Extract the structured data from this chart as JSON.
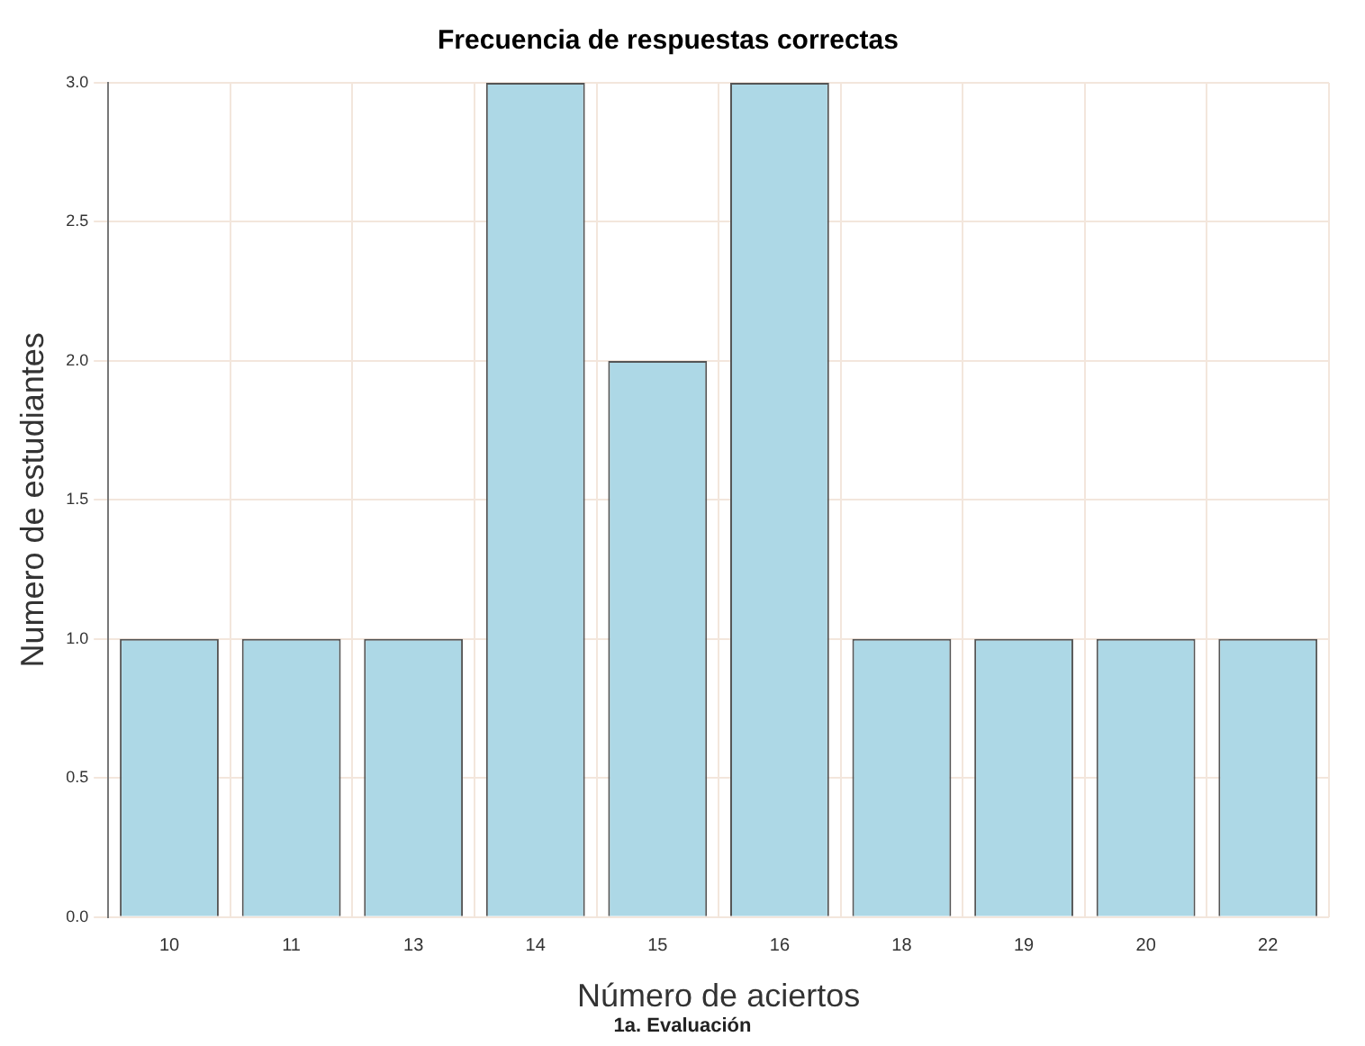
{
  "chart_data": {
    "type": "bar",
    "title": "Frecuencia de respuestas correctas",
    "xlabel": "Número de aciertos",
    "ylabel": "Numero de estudiantes",
    "categories": [
      "10",
      "11",
      "13",
      "14",
      "15",
      "16",
      "18",
      "19",
      "20",
      "22"
    ],
    "values": [
      1,
      1,
      1,
      3,
      2,
      3,
      1,
      1,
      1,
      1
    ],
    "color": "#add8e6",
    "ylim": [
      0,
      3
    ],
    "yticks": [
      {
        "value": 0,
        "label": "0.0"
      },
      {
        "value": 0.5,
        "label": "0.5"
      },
      {
        "value": 1,
        "label": "1.0"
      },
      {
        "value": 1.5,
        "label": "1.5"
      },
      {
        "value": 2,
        "label": "2.0"
      },
      {
        "value": 2.5,
        "label": "2.5"
      },
      {
        "value": 3,
        "label": "3.0"
      }
    ],
    "grid": true,
    "annotations": [
      "1a. Evaluación"
    ]
  }
}
